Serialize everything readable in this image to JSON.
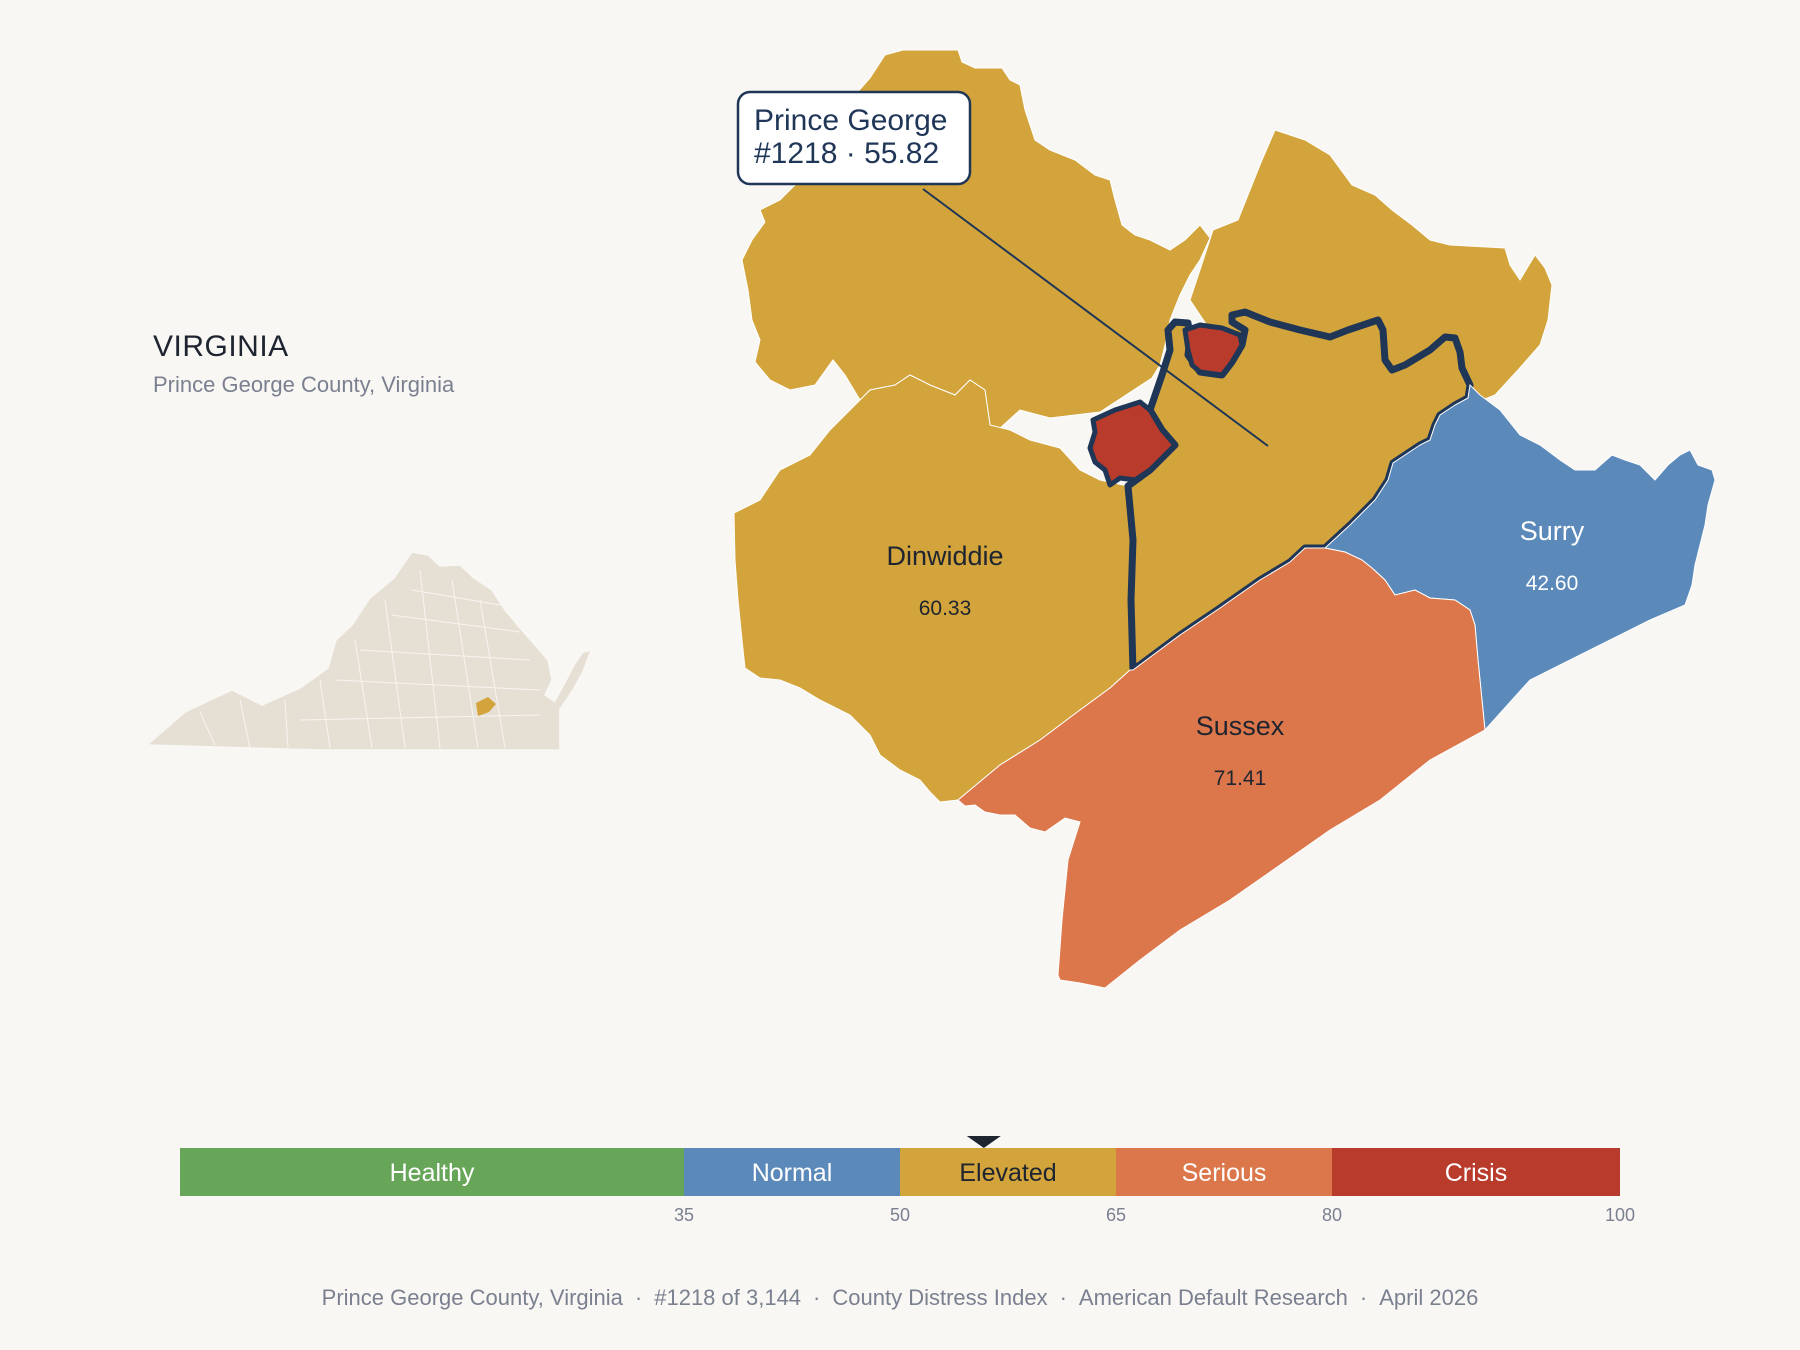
{
  "state": {
    "title": "VIRGINIA",
    "subtitle": "Prince George County, Virginia"
  },
  "callout": {
    "name": "Prince George",
    "detail": "#1218 · 55.82"
  },
  "counties": [
    {
      "name": "Dinwiddie",
      "value": "60.33",
      "category": "Elevated"
    },
    {
      "name": "Sussex",
      "value": "71.41",
      "category": "Serious"
    },
    {
      "name": "Surry",
      "value": "42.60",
      "category": "Normal"
    },
    {
      "name": "Prince George",
      "value": "55.82",
      "category": "Elevated",
      "highlighted": true
    }
  ],
  "legend": {
    "bands": [
      {
        "label": "Healthy",
        "from": 0,
        "to": 35,
        "color": "#67a659"
      },
      {
        "label": "Normal",
        "from": 35,
        "to": 50,
        "color": "#5b8aba"
      },
      {
        "label": "Elevated",
        "from": 50,
        "to": 65,
        "color": "#d2a43b"
      },
      {
        "label": "Serious",
        "from": 65,
        "to": 80,
        "color": "#db774a"
      },
      {
        "label": "Crisis",
        "from": 80,
        "to": 100,
        "color": "#b83b2c"
      }
    ],
    "ticks": [
      "35",
      "50",
      "65",
      "80",
      "100"
    ],
    "marker_value": 55.82
  },
  "colors": {
    "independent_city": "#b83b2c",
    "outline": "#1f3657",
    "inset_state": "#e6e0d4"
  },
  "footer": {
    "county": "Prince George County, Virginia",
    "rank": "#1218 of 3,144",
    "index": "County Distress Index",
    "source": "American Default Research",
    "date": "April 2026"
  }
}
